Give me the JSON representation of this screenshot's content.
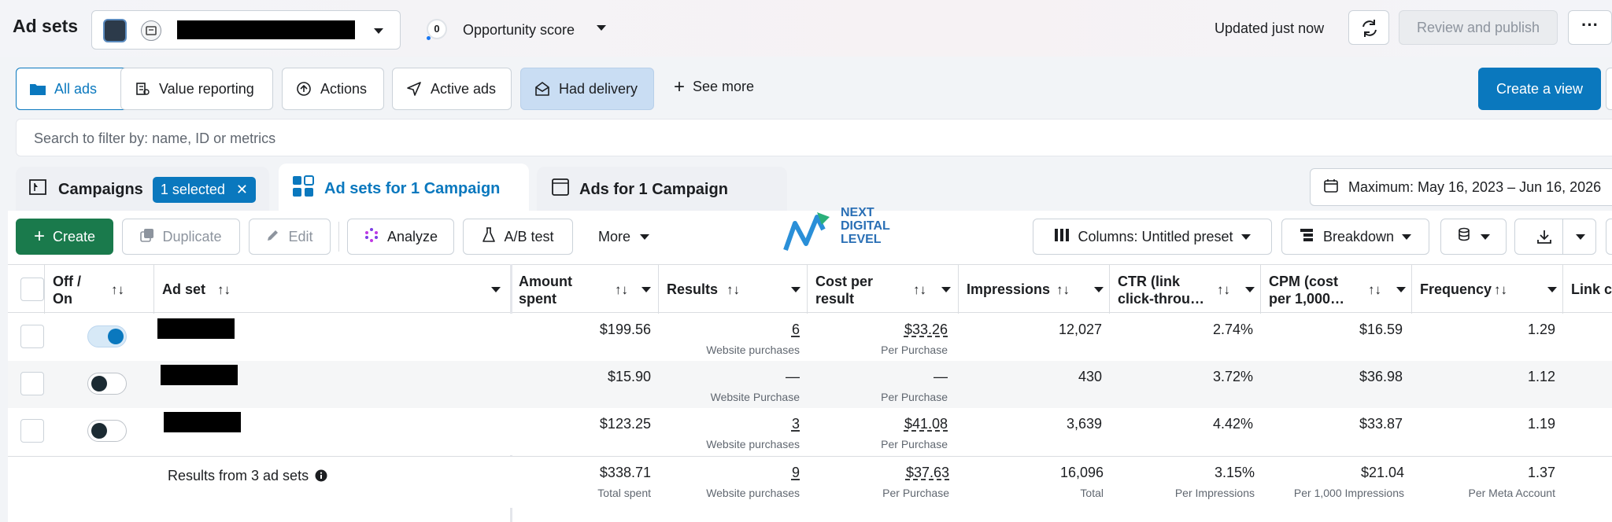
{
  "header": {
    "title": "Ad sets",
    "opportunity_score_value": "0",
    "opportunity_score_label": "Opportunity score",
    "updated": "Updated just now",
    "review_publish": "Review and publish",
    "more": "···"
  },
  "filters": {
    "items": [
      {
        "label": "All ads",
        "icon": "folder-icon"
      },
      {
        "label": "Value reporting",
        "icon": "report-icon"
      },
      {
        "label": "Actions",
        "icon": "arrow-up-circle-icon"
      },
      {
        "label": "Active ads",
        "icon": "send-icon"
      },
      {
        "label": "Had delivery",
        "icon": "envelope-open-icon"
      }
    ],
    "see_more": "See more",
    "create_view": "Create a view"
  },
  "search": {
    "placeholder": "Search to filter by: name, ID or metrics"
  },
  "tabs": {
    "campaigns": "Campaigns",
    "selected_pill": "1 selected",
    "ad_sets": "Ad sets for 1 Campaign",
    "ads": "Ads for 1 Campaign",
    "date_range": "Maximum: May 16, 2023 – Jun 16, 2026"
  },
  "toolbar": {
    "create": "Create",
    "duplicate": "Duplicate",
    "edit": "Edit",
    "analyze": "Analyze",
    "ab_test": "A/B test",
    "more": "More",
    "columns": "Columns: Untitled preset",
    "breakdown": "Breakdown"
  },
  "logo": {
    "line1": "NEXT",
    "line2": "DIGITAL",
    "line3": "LEVEL"
  },
  "table": {
    "headers": {
      "off_on": "Off / On",
      "ad_set": "Ad set",
      "amount_spent": "Amount spent",
      "results": "Results",
      "cost_per_result": "Cost per result",
      "impressions": "Impressions",
      "ctr": "CTR (link click-throu…",
      "cpm": "CPM (cost per 1,000…",
      "frequency": "Frequency",
      "link": "Link c"
    },
    "rows": [
      {
        "on": true,
        "amount": "$199.56",
        "results": "6",
        "results_sub": "Website purchases",
        "cost": "$33.26",
        "cost_sub": "Per Purchase",
        "impressions": "12,027",
        "ctr": "2.74%",
        "cpm": "$16.59",
        "frequency": "1.29"
      },
      {
        "on": false,
        "amount": "$15.90",
        "results": "—",
        "results_sub": "Website Purchase",
        "cost": "—",
        "cost_sub": "Per Purchase",
        "impressions": "430",
        "ctr": "3.72%",
        "cpm": "$36.98",
        "frequency": "1.12"
      },
      {
        "on": false,
        "amount": "$123.25",
        "results": "3",
        "results_sub": "Website purchases",
        "cost": "$41.08",
        "cost_sub": "Per Purchase",
        "impressions": "3,639",
        "ctr": "4.42%",
        "cpm": "$33.87",
        "frequency": "1.19"
      }
    ],
    "summary": {
      "label": "Results from 3 ad sets",
      "amount": "$338.71",
      "amount_sub": "Total spent",
      "results": "9",
      "results_sub": "Website purchases",
      "cost": "$37.63",
      "cost_sub": "Per Purchase",
      "impressions": "16,096",
      "impressions_sub": "Total",
      "ctr": "3.15%",
      "ctr_sub": "Per Impressions",
      "cpm": "$21.04",
      "cpm_sub": "Per 1,000 Impressions",
      "frequency": "1.37",
      "frequency_sub": "Per Meta Account"
    }
  },
  "colors": {
    "accent": "#0a78be",
    "create_green": "#1a7a4c",
    "selected_chip": "#c9ddf3"
  }
}
